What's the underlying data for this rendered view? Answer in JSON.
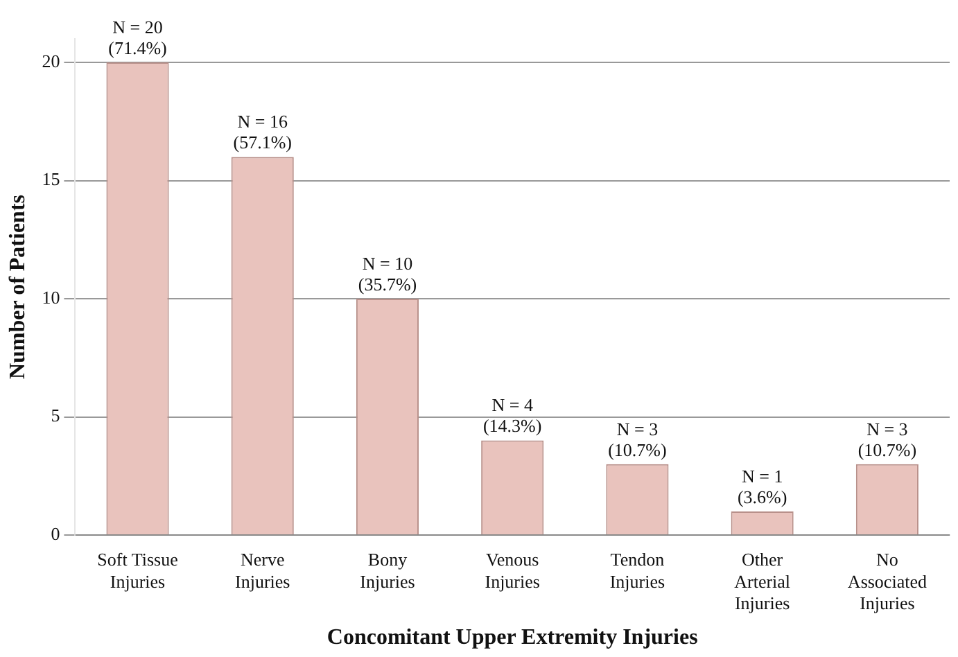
{
  "chart_data": {
    "type": "bar",
    "xlabel": "Concomitant Upper Extremity Injuries",
    "ylabel": "Number of Patients",
    "categories": [
      "Soft Tissue Injuries",
      "Nerve Injuries",
      "Bony Injuries",
      "Venous Injuries",
      "Tendon Injuries",
      "Other Arterial Injuries",
      "No Associated Injuries"
    ],
    "values": [
      20,
      16,
      10,
      4,
      3,
      1,
      3
    ],
    "value_labels": [
      "N = 20\n(71.4%)",
      "N = 16\n(57.1%)",
      "N = 10\n(35.7%)",
      "N = 4\n(14.3%)",
      "N = 3\n(10.7%)",
      "N = 1\n(3.6%)",
      "N = 3\n(10.7%)"
    ],
    "color": "#e9c3bd",
    "ylim": [
      0,
      21
    ],
    "yticks": [
      0,
      5,
      10,
      15,
      20
    ],
    "grid": "y"
  }
}
